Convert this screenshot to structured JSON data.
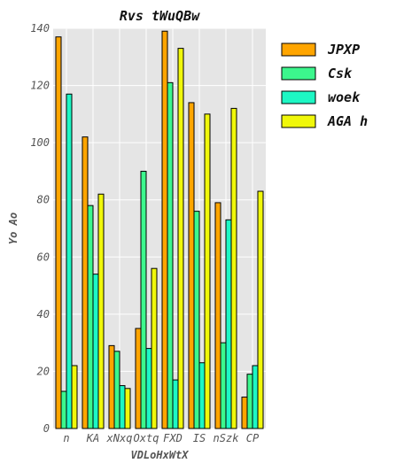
{
  "chart_data": {
    "type": "bar",
    "title": "Rvs tWuQBw",
    "xlabel": "VDLoHxWtX",
    "ylabel": "Yo Ao",
    "categories": [
      "n",
      "KA",
      "xNxq",
      "Oxtq",
      "FXD",
      "IS",
      "nSzk",
      "CP"
    ],
    "ylim": [
      0,
      140
    ],
    "yticks": [
      0,
      20,
      40,
      60,
      80,
      100,
      120,
      140
    ],
    "grid": true,
    "legend_position": "top-right outside",
    "series": [
      {
        "name": "JPXP",
        "color": "#ffa500",
        "values": [
          137,
          102,
          29,
          35,
          139,
          114,
          79,
          11
        ]
      },
      {
        "name": "Csk",
        "color": "#3cf78d",
        "values": [
          13,
          78,
          27,
          90,
          121,
          76,
          30,
          19
        ]
      },
      {
        "name": "woek",
        "color": "#1df7c4",
        "values": [
          117,
          54,
          15,
          28,
          17,
          23,
          73,
          22
        ]
      },
      {
        "name": "AGA h",
        "color": "#f0f70a",
        "values": [
          22,
          82,
          14,
          56,
          133,
          110,
          112,
          83
        ]
      }
    ]
  }
}
